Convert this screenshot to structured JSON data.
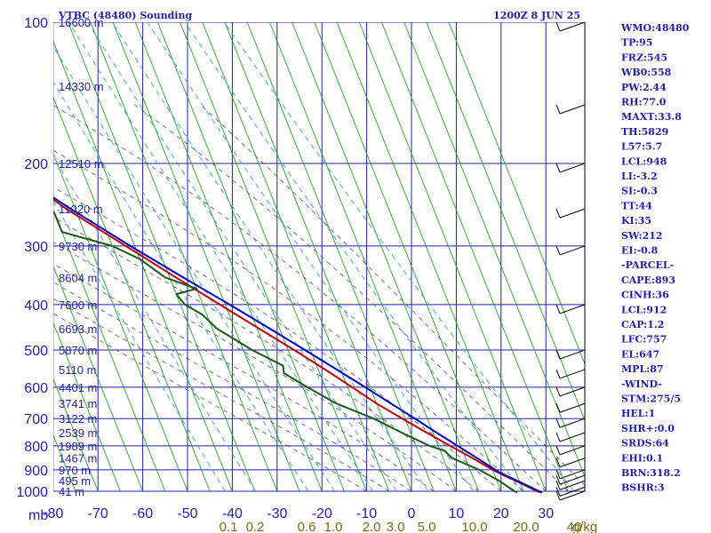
{
  "header": {
    "title": "VTBC (48480) Sounding",
    "datetime": "1200Z  8 JUN 25"
  },
  "colors": {
    "grid": "#1f1fa8",
    "dry_adiabat": "#22a322",
    "moist_adiabat": "#555555",
    "mixing_ratio": "#4aa0d8",
    "temperature": "#c00000",
    "dewpoint": "#1a5a1a",
    "parcel": "#0000c8",
    "wind_barb": "#000000"
  },
  "chart_data": {
    "type": "line",
    "diagram": "skew-t log-p",
    "xlim": [
      -80,
      40
    ],
    "ylim": [
      1000,
      100
    ],
    "y_scale": "log",
    "grid": true,
    "pressure_label": "mb",
    "pressure_ticks": [
      100,
      200,
      300,
      400,
      500,
      600,
      700,
      800,
      900,
      1000
    ],
    "temperature_ticks": [
      -80,
      -70,
      -60,
      -50,
      -40,
      -30,
      -20,
      -10,
      0,
      10,
      20,
      30
    ],
    "temperature_tick_labels": [
      "-80",
      "-70",
      "-60",
      "-50",
      "-40",
      "-30",
      "-20",
      "-10",
      "0",
      "10",
      "20",
      "30"
    ],
    "height_labels": [
      {
        "p": 100,
        "label": "16600 m"
      },
      {
        "p": 137,
        "label": "14330 m"
      },
      {
        "p": 200,
        "label": "12510 m"
      },
      {
        "p": 250,
        "label": "11020 m"
      },
      {
        "p": 300,
        "label": "9730 m"
      },
      {
        "p": 350,
        "label": "8604 m"
      },
      {
        "p": 400,
        "label": "7600 m"
      },
      {
        "p": 450,
        "label": "6693 m"
      },
      {
        "p": 500,
        "label": "5870 m"
      },
      {
        "p": 550,
        "label": "5110 m"
      },
      {
        "p": 600,
        "label": "4401 m"
      },
      {
        "p": 650,
        "label": "3741 m"
      },
      {
        "p": 700,
        "label": "3122 m"
      },
      {
        "p": 750,
        "label": "2539 m"
      },
      {
        "p": 800,
        "label": "1989 m"
      },
      {
        "p": 850,
        "label": "1467 m"
      },
      {
        "p": 900,
        "label": "970 m"
      },
      {
        "p": 950,
        "label": "495 m"
      },
      {
        "p": 1000,
        "label": "41 m"
      }
    ],
    "mixing_ratio_labels": [
      "0.1",
      "0.2",
      "0.6",
      "1.0",
      "2.0",
      "3.0",
      "5.0",
      "10.0",
      "20.0",
      "40",
      "g/kg"
    ],
    "series": [
      {
        "key": "temperature",
        "points": [
          [
            1006,
            29.0
          ],
          [
            1000,
            28.0
          ],
          [
            950,
            24.2
          ],
          [
            925,
            22.0
          ],
          [
            900,
            20.0
          ],
          [
            850,
            16.6
          ],
          [
            800,
            12.6
          ],
          [
            750,
            8.6
          ],
          [
            700,
            4.4
          ],
          [
            650,
            0.0
          ],
          [
            600,
            -4.0
          ],
          [
            550,
            -8.5
          ],
          [
            500,
            -13.6
          ],
          [
            450,
            -19.6
          ],
          [
            400,
            -26.2
          ],
          [
            350,
            -33.6
          ],
          [
            300,
            -42.0
          ],
          [
            250,
            -52.0
          ],
          [
            200,
            -62.0
          ],
          [
            150,
            -70.8
          ],
          [
            125,
            -74.0
          ],
          [
            100,
            -82.0
          ]
        ]
      },
      {
        "key": "dewpoint",
        "points": [
          [
            1006,
            23.5
          ],
          [
            1000,
            23.0
          ],
          [
            950,
            20.5
          ],
          [
            900,
            17.0
          ],
          [
            850,
            12.0
          ],
          [
            820,
            11.0
          ],
          [
            800,
            8.0
          ],
          [
            750,
            3.0
          ],
          [
            700,
            -2.0
          ],
          [
            650,
            -9.0
          ],
          [
            600,
            -14.0
          ],
          [
            560,
            -18.0
          ],
          [
            540,
            -17.5
          ],
          [
            500,
            -23.0
          ],
          [
            450,
            -29.0
          ],
          [
            420,
            -31.0
          ],
          [
            400,
            -34.0
          ],
          [
            380,
            -35.0
          ],
          [
            370,
            -30.0
          ],
          [
            350,
            -36.0
          ],
          [
            320,
            -40.0
          ],
          [
            300,
            -45.0
          ],
          [
            280,
            -55.0
          ],
          [
            255,
            -55.0
          ],
          [
            240,
            -58.0
          ],
          [
            225,
            -70.0
          ],
          [
            215,
            -75.0
          ],
          [
            205,
            -70.0
          ],
          [
            200,
            -75.0
          ],
          [
            190,
            -72.0
          ],
          [
            180,
            -78.0
          ],
          [
            170,
            -76.0
          ],
          [
            150,
            -82.0
          ],
          [
            125,
            -90.0
          ],
          [
            110,
            -92.0
          ]
        ]
      },
      {
        "key": "parcel",
        "points": [
          [
            1006,
            29.0
          ],
          [
            950,
            24.5
          ],
          [
            912,
            21.3
          ],
          [
            850,
            17.6
          ],
          [
            800,
            14.3
          ],
          [
            750,
            10.8
          ],
          [
            700,
            7.2
          ],
          [
            650,
            3.2
          ],
          [
            600,
            -1.1
          ],
          [
            550,
            -5.9
          ],
          [
            500,
            -11.2
          ],
          [
            450,
            -17.2
          ],
          [
            400,
            -24.0
          ],
          [
            350,
            -32.0
          ],
          [
            300,
            -41.0
          ],
          [
            250,
            -51.0
          ],
          [
            200,
            -62.5
          ],
          [
            150,
            -75.0
          ],
          [
            120,
            -80.0
          ],
          [
            110,
            -82.5
          ]
        ]
      }
    ],
    "wind_barb_pressures": [
      1000,
      980,
      950,
      925,
      900,
      850,
      800,
      750,
      700,
      650,
      600,
      550,
      500,
      400,
      300,
      250,
      200,
      150,
      100
    ]
  },
  "indices": [
    "WMO:48480",
    "TP:95",
    "FRZ:545",
    "WB0:558",
    "PW:2.44",
    "RH:77.0",
    "MAXT:33.8",
    "TH:5829",
    "L57:5.7",
    "LCL:948",
    "LI:-3.2",
    "SI:-0.3",
    "TT:44",
    "KI:35",
    "SW:212",
    "EI:-0.8",
    "-PARCEL-",
    "CAPE:893",
    "CINH:36",
    "LCL:912",
    "CAP:1.2",
    "LFC:757",
    "EL:647",
    "MPL:87",
    "-WIND-",
    "STM:275/5",
    "HEL:1",
    "SHR+:0.0",
    "SRDS:64",
    "EHI:0.1",
    "BRN:318.2",
    "BSHR:3"
  ]
}
